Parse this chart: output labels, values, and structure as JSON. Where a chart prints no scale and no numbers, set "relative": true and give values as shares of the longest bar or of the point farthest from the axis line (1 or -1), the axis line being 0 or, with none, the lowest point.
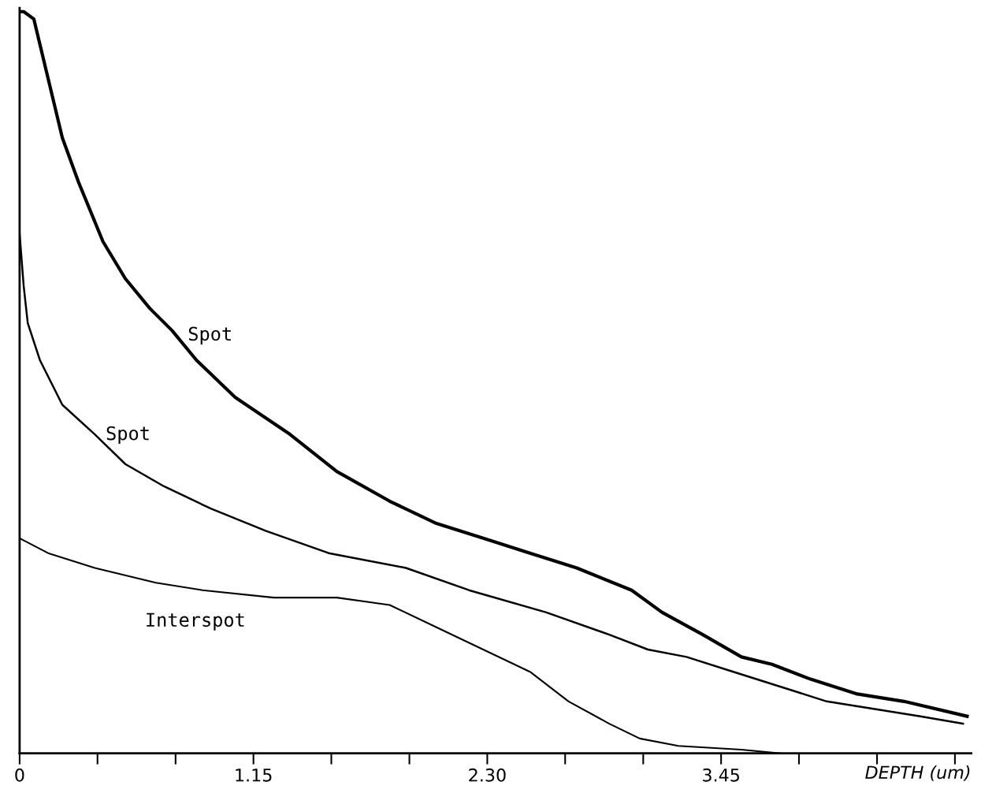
{
  "chart_data": {
    "type": "line",
    "relative": true,
    "xlabel": "DEPTH (um)",
    "xlim": [
      0,
      4.68
    ],
    "xticks": [
      {
        "value": 0,
        "label": "0"
      },
      {
        "value": 0.383,
        "label": null
      },
      {
        "value": 0.767,
        "label": null
      },
      {
        "value": 1.15,
        "label": "1.15"
      },
      {
        "value": 1.533,
        "label": null
      },
      {
        "value": 1.917,
        "label": null
      },
      {
        "value": 2.3,
        "label": "2.30"
      },
      {
        "value": 2.683,
        "label": null
      },
      {
        "value": 3.067,
        "label": null
      },
      {
        "value": 3.45,
        "label": "3.45"
      },
      {
        "value": 3.833,
        "label": null
      },
      {
        "value": 4.217,
        "label": null
      },
      {
        "value": 4.6,
        "label": null
      }
    ],
    "grid": false,
    "legend": false,
    "tick_labels": "x",
    "series": [
      {
        "name": "Spot",
        "color": "#000000",
        "x": [
          0,
          0.02,
          0.07,
          0.14,
          0.21,
          0.29,
          0.41,
          0.52,
          0.64,
          0.75,
          0.87,
          1.06,
          1.33,
          1.56,
          1.82,
          2.05,
          2.28,
          2.51,
          2.74,
          3.01,
          3.16,
          3.36,
          3.55,
          3.7,
          3.89,
          4.12,
          4.35,
          4.66
        ],
        "values": [
          1.0,
          1.0,
          0.99,
          0.91,
          0.83,
          0.77,
          0.69,
          0.64,
          0.6,
          0.57,
          0.53,
          0.48,
          0.43,
          0.38,
          0.34,
          0.31,
          0.29,
          0.27,
          0.25,
          0.22,
          0.19,
          0.16,
          0.13,
          0.12,
          0.1,
          0.08,
          0.07,
          0.05
        ]
      },
      {
        "name": "Spot",
        "color": "#000000",
        "x": [
          0,
          0.02,
          0.04,
          0.1,
          0.21,
          0.37,
          0.52,
          0.71,
          0.94,
          1.21,
          1.52,
          1.9,
          2.21,
          2.59,
          2.9,
          3.09,
          3.28,
          3.51,
          3.74,
          3.97,
          4.2,
          4.43,
          4.64
        ],
        "values": [
          0.7,
          0.63,
          0.58,
          0.53,
          0.47,
          0.43,
          0.39,
          0.36,
          0.33,
          0.3,
          0.27,
          0.25,
          0.22,
          0.19,
          0.16,
          0.14,
          0.13,
          0.11,
          0.09,
          0.07,
          0.06,
          0.05,
          0.04
        ]
      },
      {
        "name": "Interspot",
        "color": "#000000",
        "x": [
          0,
          0.14,
          0.37,
          0.67,
          0.9,
          1.25,
          1.56,
          1.82,
          2.05,
          2.28,
          2.51,
          2.7,
          2.9,
          3.05,
          3.24,
          3.55,
          3.74
        ],
        "values": [
          0.29,
          0.27,
          0.25,
          0.23,
          0.22,
          0.21,
          0.21,
          0.2,
          0.17,
          0.14,
          0.11,
          0.07,
          0.04,
          0.02,
          0.01,
          0.005,
          0.0
        ]
      }
    ]
  }
}
